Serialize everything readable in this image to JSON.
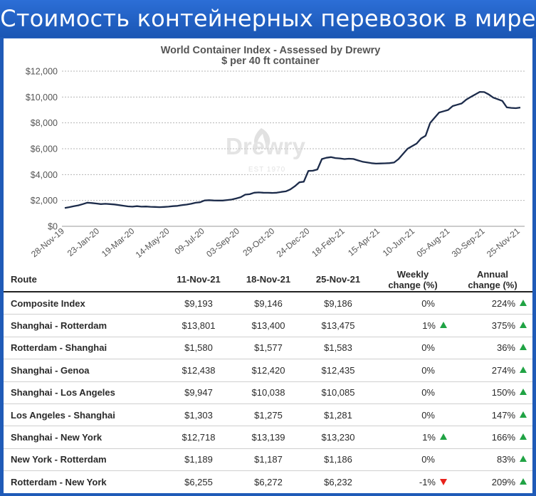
{
  "banner": {
    "title": "Стоимость контейнерных перевозок в мире"
  },
  "colors": {
    "banner": "#1f5bb8",
    "line": "#1c2b4a",
    "up": "#20a344",
    "down": "#e8221b"
  },
  "chart_data": {
    "type": "line",
    "title": "World Container Index - Assessed by Drewry",
    "subtitle": "$ per 40 ft container",
    "watermark": {
      "brand": "Drewry",
      "est": "EST 1970"
    },
    "ylim": [
      0,
      12000
    ],
    "yticks": [
      0,
      2000,
      4000,
      6000,
      8000,
      10000,
      12000
    ],
    "ytick_labels": [
      "$0",
      "$2,000",
      "$4,000",
      "$6,000",
      "$8,000",
      "$10,000",
      "$12,000"
    ],
    "xtick_labels": [
      "28-Nov-19",
      "23-Jan-20",
      "19-Mar-20",
      "14-May-20",
      "09-Jul-20",
      "03-Sep-20",
      "29-Oct-20",
      "24-Dec-20",
      "18-Feb-21",
      "15-Apr-21",
      "10-Jun-21",
      "05-Aug-21",
      "30-Sep-21",
      "25-Nov-21"
    ],
    "grid": true,
    "series": [
      {
        "values": [
          1420,
          1480,
          1550,
          1620,
          1720,
          1830,
          1800,
          1760,
          1720,
          1740,
          1720,
          1690,
          1640,
          1590,
          1540,
          1520,
          1560,
          1520,
          1530,
          1510,
          1500,
          1480,
          1500,
          1520,
          1560,
          1580,
          1640,
          1680,
          1740,
          1820,
          1860,
          2000,
          2020,
          2000,
          1990,
          1990,
          2030,
          2070,
          2150,
          2250,
          2450,
          2480,
          2600,
          2620,
          2600,
          2590,
          2580,
          2600,
          2660,
          2700,
          2850,
          3100,
          3400,
          3450,
          4280,
          4300,
          4400,
          5200,
          5300,
          5350,
          5280,
          5250,
          5200,
          5230,
          5210,
          5100,
          5000,
          4940,
          4880,
          4850,
          4860,
          4870,
          4890,
          4930,
          5200,
          5600,
          6000,
          6200,
          6400,
          6800,
          7000,
          8000,
          8400,
          8800,
          8900,
          9000,
          9300,
          9400,
          9500,
          9800,
          10000,
          10200,
          10400,
          10380,
          10200,
          9950,
          9830,
          9700,
          9200,
          9160,
          9140,
          9186
        ]
      }
    ]
  },
  "table": {
    "headers": {
      "route": "Route",
      "d1": "11-Nov-21",
      "d2": "18-Nov-21",
      "d3": "25-Nov-21",
      "weekly_1": "Weekly",
      "weekly_2": "change (%)",
      "annual_1": "Annual",
      "annual_2": "change (%)"
    },
    "rows": [
      {
        "route": "Composite Index",
        "d1": "$9,193",
        "d2": "$9,146",
        "d3": "$9,186",
        "weekly": "0%",
        "weekly_dir": "none",
        "annual": "224%",
        "annual_dir": "up"
      },
      {
        "route": "Shanghai - Rotterdam",
        "d1": "$13,801",
        "d2": "$13,400",
        "d3": "$13,475",
        "weekly": "1%",
        "weekly_dir": "up",
        "annual": "375%",
        "annual_dir": "up"
      },
      {
        "route": "Rotterdam - Shanghai",
        "d1": "$1,580",
        "d2": "$1,577",
        "d3": "$1,583",
        "weekly": "0%",
        "weekly_dir": "none",
        "annual": "36%",
        "annual_dir": "up"
      },
      {
        "route": "Shanghai - Genoa",
        "d1": "$12,438",
        "d2": "$12,420",
        "d3": "$12,435",
        "weekly": "0%",
        "weekly_dir": "none",
        "annual": "274%",
        "annual_dir": "up"
      },
      {
        "route": "Shanghai - Los Angeles",
        "d1": "$9,947",
        "d2": "$10,038",
        "d3": "$10,085",
        "weekly": "0%",
        "weekly_dir": "none",
        "annual": "150%",
        "annual_dir": "up"
      },
      {
        "route": "Los Angeles - Shanghai",
        "d1": "$1,303",
        "d2": "$1,275",
        "d3": "$1,281",
        "weekly": "0%",
        "weekly_dir": "none",
        "annual": "147%",
        "annual_dir": "up"
      },
      {
        "route": "Shanghai - New York",
        "d1": "$12,718",
        "d2": "$13,139",
        "d3": "$13,230",
        "weekly": "1%",
        "weekly_dir": "up",
        "annual": "166%",
        "annual_dir": "up"
      },
      {
        "route": "New York - Rotterdam",
        "d1": "$1,189",
        "d2": "$1,187",
        "d3": "$1,186",
        "weekly": "0%",
        "weekly_dir": "none",
        "annual": "83%",
        "annual_dir": "up"
      },
      {
        "route": "Rotterdam - New York",
        "d1": "$6,255",
        "d2": "$6,272",
        "d3": "$6,232",
        "weekly": "-1%",
        "weekly_dir": "down",
        "annual": "209%",
        "annual_dir": "up"
      }
    ]
  }
}
